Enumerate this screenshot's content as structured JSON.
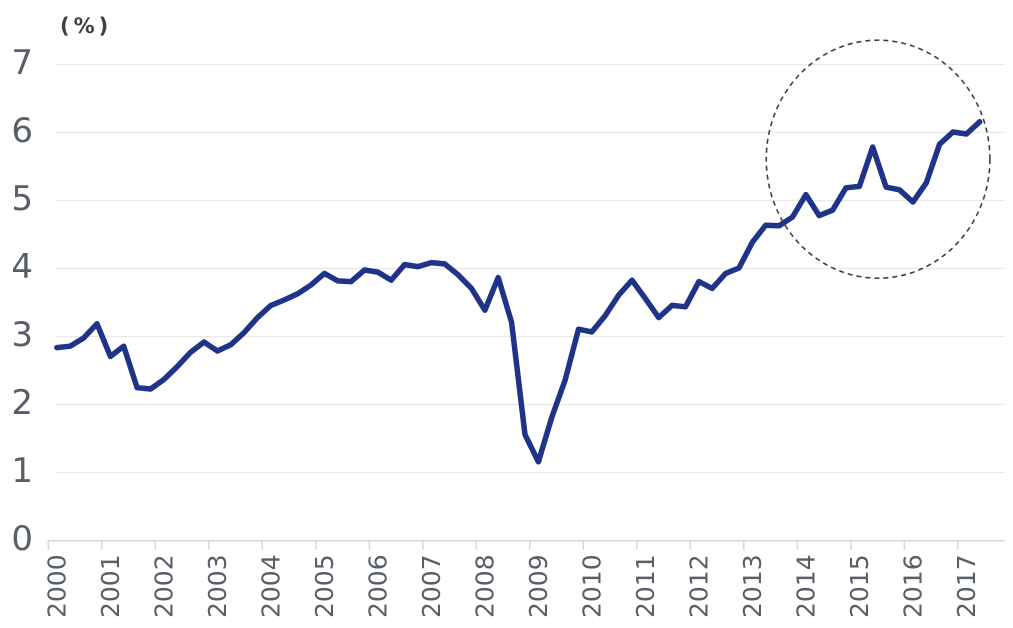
{
  "page": {
    "background": "#ffffff"
  },
  "chart_data": {
    "type": "line",
    "title": "",
    "unit_label": "(%)",
    "xlabel": "",
    "ylabel": "",
    "ylim": [
      0,
      7
    ],
    "y_ticks": [
      0,
      1,
      2,
      3,
      4,
      5,
      6,
      7
    ],
    "x_tick_labels": [
      "2000",
      "2001",
      "2002",
      "2003",
      "2004",
      "2005",
      "2006",
      "2007",
      "2008",
      "2009",
      "2010",
      "2011",
      "2012",
      "2013",
      "2014",
      "2015",
      "2016",
      "2017"
    ],
    "x_period": "quarterly",
    "x_start_year": 2000.16,
    "x_step_years": 0.25,
    "grid": "horizontal-only",
    "legend": "none",
    "series": [
      {
        "name": "percent-series",
        "color": "#1f3488",
        "values": [
          2.83,
          2.85,
          2.97,
          3.18,
          2.7,
          2.85,
          2.24,
          2.22,
          2.36,
          2.55,
          2.76,
          2.91,
          2.78,
          2.87,
          3.05,
          3.27,
          3.45,
          3.53,
          3.62,
          3.75,
          3.92,
          3.81,
          3.8,
          3.97,
          3.94,
          3.82,
          4.05,
          4.02,
          4.08,
          4.06,
          3.9,
          3.7,
          3.38,
          3.86,
          3.2,
          1.55,
          1.15,
          1.8,
          2.35,
          3.1,
          3.06,
          3.3,
          3.6,
          3.82,
          3.55,
          3.27,
          3.45,
          3.43,
          3.8,
          3.7,
          3.92,
          4.0,
          4.38,
          4.63,
          4.62,
          4.75,
          5.08,
          4.77,
          4.85,
          5.18,
          5.2,
          5.78,
          5.19,
          5.15,
          4.97,
          5.25,
          5.82,
          6.0,
          5.97,
          6.15
        ]
      }
    ],
    "annotation_circle": {
      "shape": "dashed-ellipse",
      "center_year": 2015.51,
      "center_value": 5.6,
      "radius_years": 2.09,
      "radius_value": 1.75
    },
    "colors": {
      "line": "#1f3488",
      "grid": "#e9e9e9",
      "axis": "#d9d9d9",
      "tick_label": "#595f66",
      "unit_label": "#3f3f3f",
      "annotation": "#404040"
    }
  }
}
